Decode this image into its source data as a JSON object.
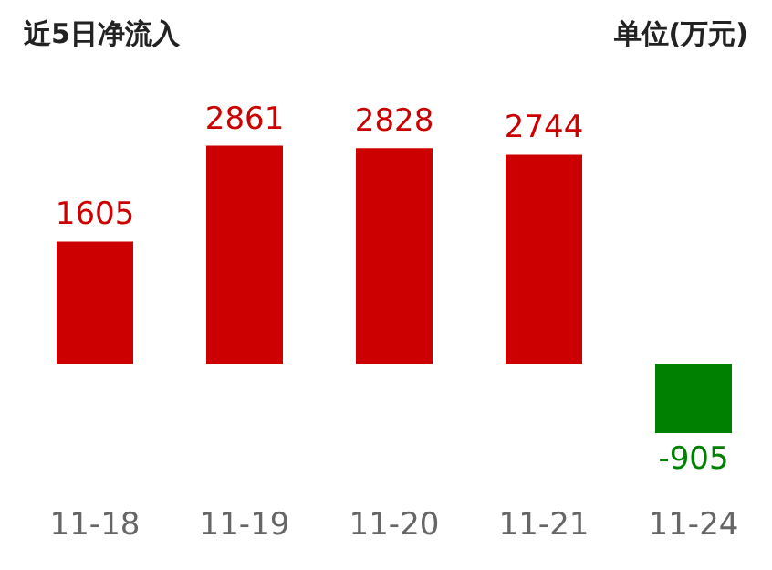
{
  "chart_data": {
    "type": "bar",
    "title": "近5日净流入",
    "subtitle": "单位(万元)",
    "categories": [
      "11-18",
      "11-19",
      "11-20",
      "11-21",
      "11-24"
    ],
    "values": [
      1605,
      2861,
      2828,
      2744,
      -905
    ],
    "colors": [
      "#cc0000",
      "#cc0000",
      "#cc0000",
      "#cc0000",
      "#008000"
    ],
    "data_labels": true
  }
}
